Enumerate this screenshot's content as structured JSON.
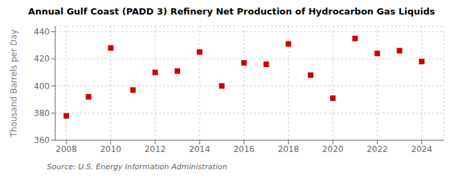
{
  "chart_data": {
    "type": "scatter",
    "title": "Annual Gulf Coast (PADD 3) Refinery Net Production of Hydrocarbon Gas Liquids",
    "ylabel": "Thousand Barrels per Day",
    "annotations": [
      "Source: U.S. Energy Information Administration"
    ],
    "x": [
      2008,
      2009,
      2010,
      2011,
      2012,
      2013,
      2014,
      2015,
      2016,
      2017,
      2018,
      2019,
      2020,
      2021,
      2022,
      2023,
      2024
    ],
    "values": [
      378,
      392,
      428,
      397,
      410,
      411,
      425,
      400,
      417,
      416,
      431,
      408,
      391,
      435,
      424,
      426,
      418
    ],
    "color": "#cc0000",
    "marker": "square",
    "xlim": [
      2007.5,
      2025.0
    ],
    "ylim": [
      360,
      444
    ],
    "xticks": [
      2008,
      2010,
      2012,
      2014,
      2016,
      2018,
      2020,
      2022,
      2024
    ],
    "yticks": [
      360,
      380,
      400,
      420,
      440
    ],
    "grid": true
  }
}
